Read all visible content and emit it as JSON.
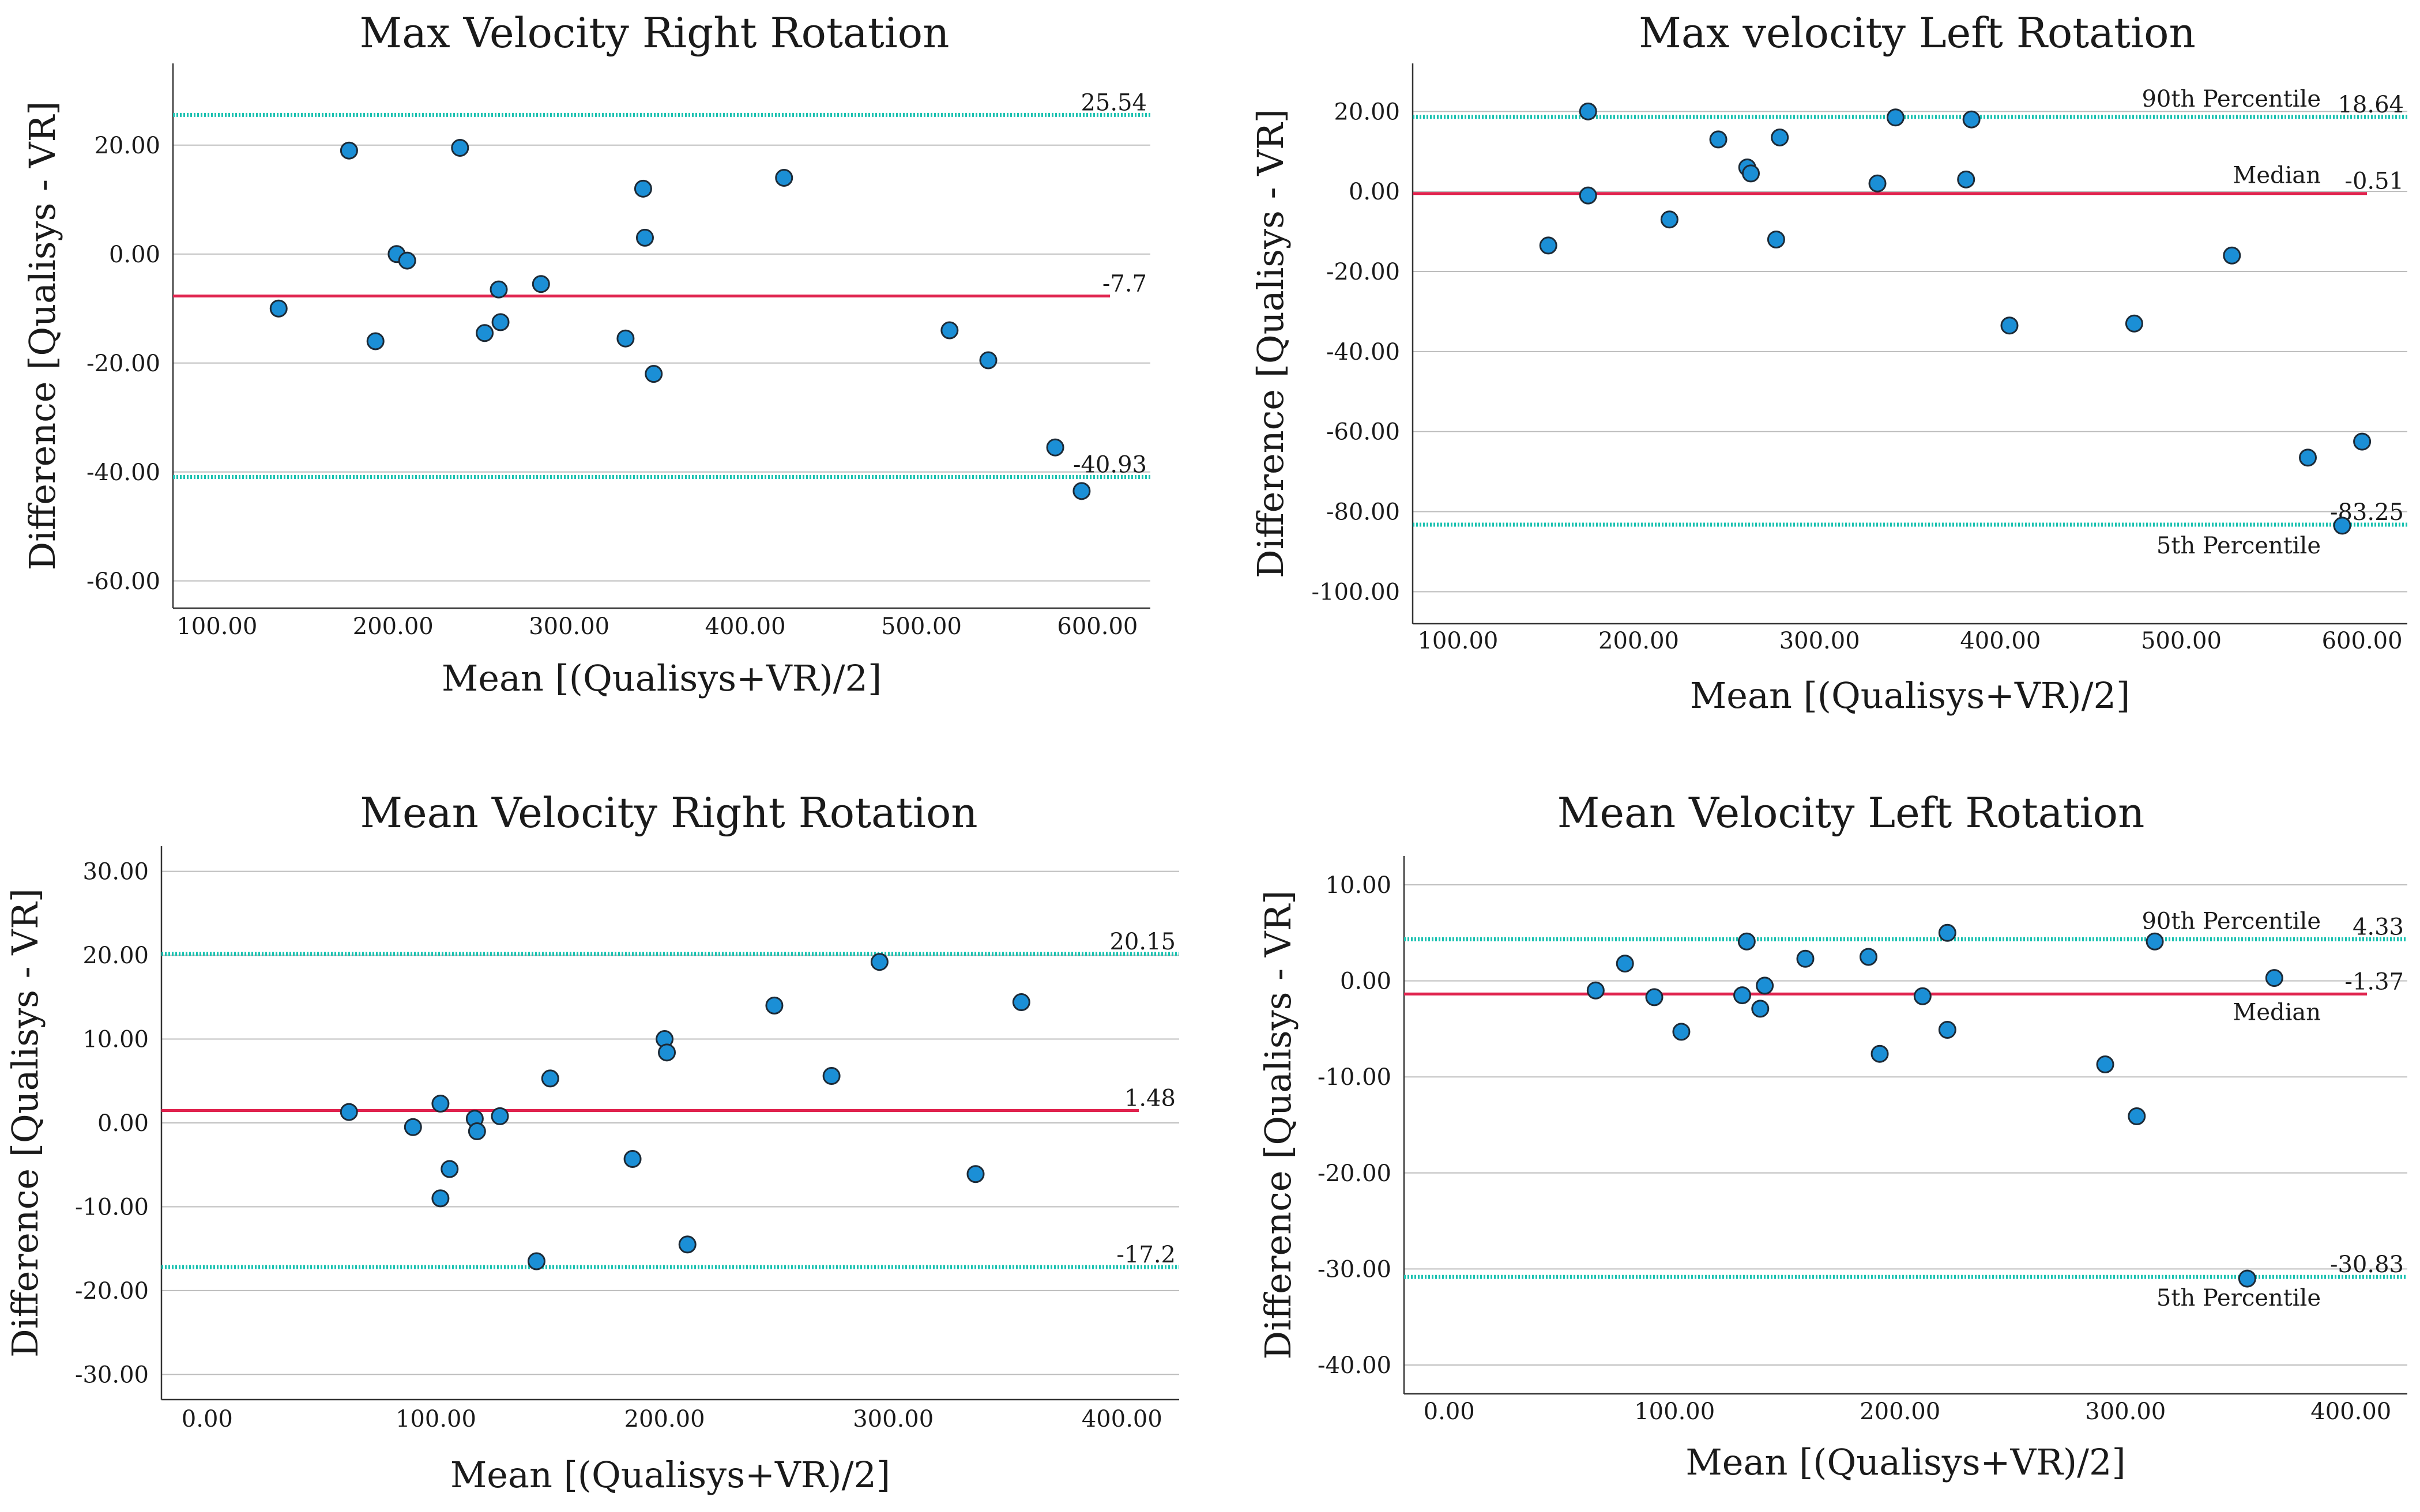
{
  "colors": {
    "points": "#1b8fd6",
    "median_line": "#e0234e",
    "limit_line": "#19c1b0",
    "grid": "#bdbdbd"
  },
  "chart_data": [
    {
      "type": "scatter",
      "title": "Max Velocity Right Rotation",
      "xlabel": "Mean [(Qualisys+VR)/2]",
      "ylabel": "Difference [Qualisys - VR]",
      "xlim": [
        75,
        630
      ],
      "ylim": [
        -65,
        35
      ],
      "xticks": [
        100,
        200,
        300,
        400,
        500,
        600
      ],
      "xtick_labels": [
        "100.00",
        "200.00",
        "300.00",
        "400.00",
        "500.00",
        "600.00"
      ],
      "yticks": [
        -60,
        -40,
        -20,
        0,
        20
      ],
      "ytick_labels": [
        "-60.00",
        "-40.00",
        "-20.00",
        "0.00",
        "20.00"
      ],
      "points": [
        {
          "x": 135,
          "y": -10
        },
        {
          "x": 175,
          "y": 19
        },
        {
          "x": 190,
          "y": -16
        },
        {
          "x": 202,
          "y": 0
        },
        {
          "x": 208,
          "y": -1.2
        },
        {
          "x": 238,
          "y": 19.5
        },
        {
          "x": 252,
          "y": -14.5
        },
        {
          "x": 260,
          "y": -6.5
        },
        {
          "x": 261,
          "y": -12.5
        },
        {
          "x": 284,
          "y": -5.5
        },
        {
          "x": 332,
          "y": -15.5
        },
        {
          "x": 342,
          "y": 12
        },
        {
          "x": 343,
          "y": 3
        },
        {
          "x": 348,
          "y": -22
        },
        {
          "x": 422,
          "y": 14
        },
        {
          "x": 516,
          "y": -14
        },
        {
          "x": 538,
          "y": -19.5
        },
        {
          "x": 576,
          "y": -35.5
        },
        {
          "x": 591,
          "y": -43.5
        }
      ],
      "lines": [
        {
          "role": "upper",
          "value": 25.54,
          "label": "25.54",
          "name": ""
        },
        {
          "role": "median",
          "value": -7.7,
          "label": "-7.7",
          "name": ""
        },
        {
          "role": "lower",
          "value": -40.93,
          "label": "-40.93",
          "name": ""
        }
      ]
    },
    {
      "type": "scatter",
      "title": "Max velocity Left Rotation",
      "xlabel": "Mean [(Qualisys+VR)/2]",
      "ylabel": "Difference [Qualisys - VR]",
      "xlim": [
        75,
        625
      ],
      "ylim": [
        -108,
        32
      ],
      "xticks": [
        100,
        200,
        300,
        400,
        500,
        600
      ],
      "xtick_labels": [
        "100.00",
        "200.00",
        "300.00",
        "400.00",
        "500.00",
        "600.00"
      ],
      "yticks": [
        -100,
        -80,
        -60,
        -40,
        -20,
        0,
        20
      ],
      "ytick_labels": [
        "-100.00",
        "-80.00",
        "-60.00",
        "-40.00",
        "-20.00",
        "0.00",
        "20.00"
      ],
      "points": [
        {
          "x": 150,
          "y": -13.5
        },
        {
          "x": 172,
          "y": 20
        },
        {
          "x": 172,
          "y": -1
        },
        {
          "x": 217,
          "y": -7
        },
        {
          "x": 244,
          "y": 13
        },
        {
          "x": 260,
          "y": 6
        },
        {
          "x": 262,
          "y": 4.5
        },
        {
          "x": 276,
          "y": -12
        },
        {
          "x": 278,
          "y": 13.5
        },
        {
          "x": 332,
          "y": 2
        },
        {
          "x": 342,
          "y": 18.5
        },
        {
          "x": 381,
          "y": 3
        },
        {
          "x": 384,
          "y": 18
        },
        {
          "x": 405,
          "y": -33.5
        },
        {
          "x": 474,
          "y": -33
        },
        {
          "x": 528,
          "y": -16
        },
        {
          "x": 570,
          "y": -66.5
        },
        {
          "x": 589,
          "y": -83.5
        },
        {
          "x": 600,
          "y": -62.5
        }
      ],
      "lines": [
        {
          "role": "upper",
          "value": 18.64,
          "label": "18.64",
          "name": "90th Percentile"
        },
        {
          "role": "median",
          "value": -0.51,
          "label": "-0.51",
          "name": "Median"
        },
        {
          "role": "lower",
          "value": -83.25,
          "label": "-83.25",
          "name": "5th Percentile"
        }
      ]
    },
    {
      "type": "scatter",
      "title": "Mean Velocity Right Rotation",
      "xlabel": "Mean [(Qualisys+VR)/2]",
      "ylabel": "Difference [Qualisys - VR]",
      "xlim": [
        -20,
        425
      ],
      "ylim": [
        -33,
        33
      ],
      "xticks": [
        0,
        100,
        200,
        300,
        400
      ],
      "xtick_labels": [
        "0.00",
        "100.00",
        "200.00",
        "300.00",
        "400.00"
      ],
      "yticks": [
        -30,
        -20,
        -10,
        0,
        10,
        20,
        30
      ],
      "ytick_labels": [
        "-30.00",
        "-20.00",
        "-10.00",
        "0.00",
        "10.00",
        "20.00",
        "30.00"
      ],
      "points": [
        {
          "x": 62,
          "y": 1.3
        },
        {
          "x": 90,
          "y": -0.5
        },
        {
          "x": 102,
          "y": 2.3
        },
        {
          "x": 102,
          "y": -9
        },
        {
          "x": 106,
          "y": -5.5
        },
        {
          "x": 117,
          "y": 0.5
        },
        {
          "x": 118,
          "y": -1
        },
        {
          "x": 128,
          "y": 0.8
        },
        {
          "x": 144,
          "y": -16.5
        },
        {
          "x": 150,
          "y": 5.3
        },
        {
          "x": 186,
          "y": -4.3
        },
        {
          "x": 200,
          "y": 10
        },
        {
          "x": 201,
          "y": 8.4
        },
        {
          "x": 210,
          "y": -14.5
        },
        {
          "x": 248,
          "y": 14
        },
        {
          "x": 273,
          "y": 5.6
        },
        {
          "x": 294,
          "y": 19.2
        },
        {
          "x": 336,
          "y": -6.1
        },
        {
          "x": 356,
          "y": 14.4
        }
      ],
      "lines": [
        {
          "role": "upper",
          "value": 20.15,
          "label": "20.15",
          "name": ""
        },
        {
          "role": "median",
          "value": 1.48,
          "label": "1.48",
          "name": ""
        },
        {
          "role": "lower",
          "value": -17.2,
          "label": "-17.2",
          "name": ""
        }
      ]
    },
    {
      "type": "scatter",
      "title": "Mean Velocity Left Rotation",
      "xlabel": "Mean [(Qualisys+VR)/2]",
      "ylabel": "Difference [Qualisys - VR]",
      "xlim": [
        -20,
        425
      ],
      "ylim": [
        -43,
        13
      ],
      "xticks": [
        0,
        100,
        200,
        300,
        400
      ],
      "xtick_labels": [
        "0.00",
        "100.00",
        "200.00",
        "300.00",
        "400.00"
      ],
      "yticks": [
        -40,
        -30,
        -20,
        -10,
        0,
        10
      ],
      "ytick_labels": [
        "-40.00",
        "-30.00",
        "-20.00",
        "-10.00",
        "0.00",
        "10.00"
      ],
      "points": [
        {
          "x": 65,
          "y": -1
        },
        {
          "x": 78,
          "y": 1.8
        },
        {
          "x": 91,
          "y": -1.7
        },
        {
          "x": 103,
          "y": -5.3
        },
        {
          "x": 130,
          "y": -1.5
        },
        {
          "x": 132,
          "y": 4.1
        },
        {
          "x": 138,
          "y": -2.9
        },
        {
          "x": 140,
          "y": -0.5
        },
        {
          "x": 158,
          "y": 2.3
        },
        {
          "x": 186,
          "y": 2.5
        },
        {
          "x": 191,
          "y": -7.6
        },
        {
          "x": 210,
          "y": -1.6
        },
        {
          "x": 221,
          "y": 5
        },
        {
          "x": 221,
          "y": -5.1
        },
        {
          "x": 291,
          "y": -8.7
        },
        {
          "x": 305,
          "y": -14.1
        },
        {
          "x": 313,
          "y": 4.1
        },
        {
          "x": 354,
          "y": -31
        },
        {
          "x": 366,
          "y": 0.3
        }
      ],
      "lines": [
        {
          "role": "upper",
          "value": 4.33,
          "label": "4.33",
          "name": "90th Percentile"
        },
        {
          "role": "median",
          "value": -1.37,
          "label": "-1.37",
          "name": "Median"
        },
        {
          "role": "lower",
          "value": -30.83,
          "label": "-30.83",
          "name": "5th Percentile"
        }
      ]
    }
  ]
}
